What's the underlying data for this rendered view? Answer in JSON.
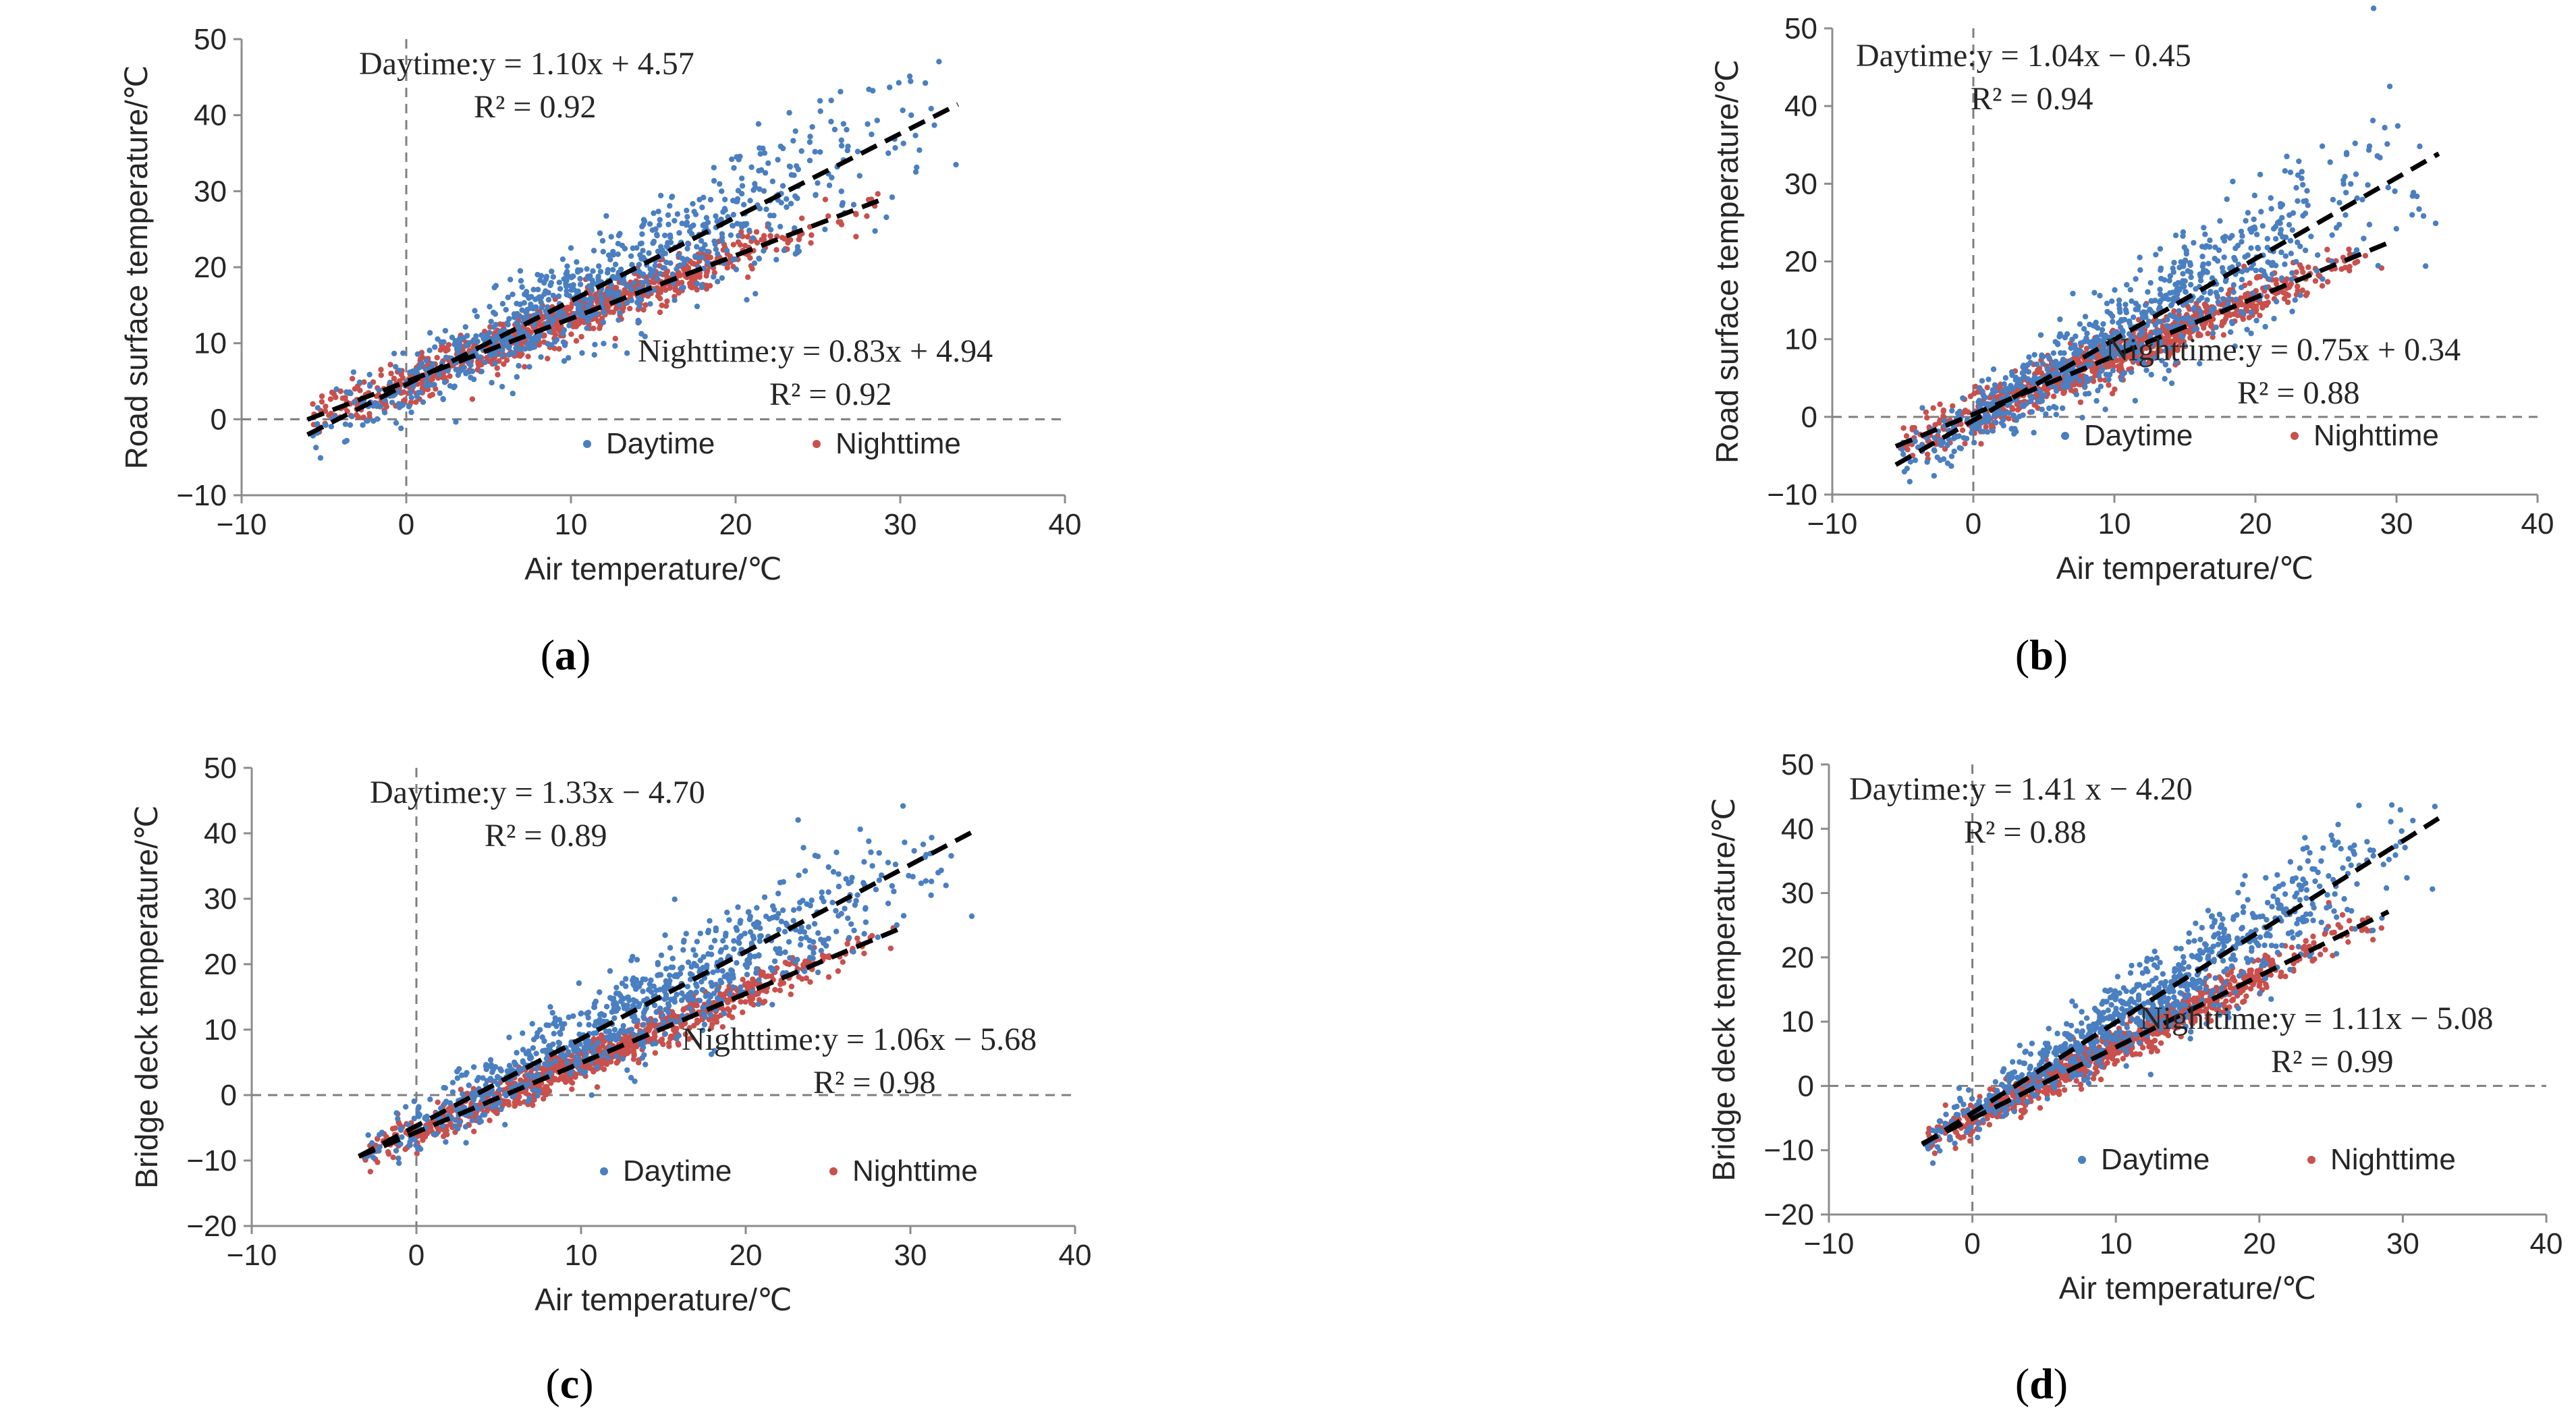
{
  "colors": {
    "day": "#4a7fc1",
    "night": "#c9504c",
    "fit": "#000000",
    "zero": "#7f7f7f",
    "axis": "#8c8c8c",
    "text": "#262626"
  },
  "legend": {
    "day": "Daytime",
    "night": "Nighttime"
  },
  "chart_data": [
    {
      "type": "scatter",
      "label_open": "(",
      "label_letter": "a",
      "label_close": ")",
      "xlabel": "Air temperature/℃",
      "ylabel": "Road surface temperature/℃",
      "xlim": [
        -10,
        40
      ],
      "ylim": [
        -10,
        50
      ],
      "xticks": [
        -10,
        0,
        10,
        20,
        30,
        40
      ],
      "yticks": [
        -10,
        0,
        10,
        20,
        30,
        40,
        50
      ],
      "series": [
        {
          "name": "Daytime",
          "slope": 1.1,
          "intercept": 4.57,
          "x_range": [
            -6,
            33.5
          ],
          "eq_line1": "Daytime:y = 1.10x + 4.57",
          "eq_line2": "R² = 0.92"
        },
        {
          "name": "Nighttime",
          "slope": 0.83,
          "intercept": 4.94,
          "x_range": [
            -6,
            29
          ],
          "eq_line1": "Nighttime:y = 0.83x + 4.94",
          "eq_line2": "R² = 0.92"
        }
      ]
    },
    {
      "type": "scatter",
      "label_open": "(",
      "label_letter": "b",
      "label_close": ")",
      "xlabel": "Air temperature/℃",
      "ylabel": "Road surface temperature/℃",
      "xlim": [
        -10,
        40
      ],
      "ylim": [
        -10,
        50
      ],
      "xticks": [
        -10,
        0,
        10,
        20,
        30,
        40
      ],
      "yticks": [
        -10,
        0,
        10,
        20,
        30,
        40,
        50
      ],
      "series": [
        {
          "name": "Daytime",
          "slope": 1.04,
          "intercept": -0.45,
          "x_range": [
            -5.5,
            33
          ],
          "eq_line1": "Daytime:y = 1.04x − 0.45",
          "eq_line2": "R² = 0.94"
        },
        {
          "name": "Nighttime",
          "slope": 0.75,
          "intercept": 0.34,
          "x_range": [
            -5.5,
            29.5
          ],
          "eq_line1": "Nighttime:y = 0.75x + 0.34",
          "eq_line2": "R² = 0.88"
        }
      ]
    },
    {
      "type": "scatter",
      "label_open": "(",
      "label_letter": "c",
      "label_close": ")",
      "xlabel": "Air temperature/℃",
      "ylabel": "Bridge deck temperature/℃",
      "xlim": [
        -10,
        40
      ],
      "ylim": [
        -20,
        50
      ],
      "xticks": [
        -10,
        0,
        10,
        20,
        30,
        40
      ],
      "yticks": [
        -20,
        -10,
        0,
        10,
        20,
        30,
        40,
        50
      ],
      "series": [
        {
          "name": "Daytime",
          "slope": 1.33,
          "intercept": -4.7,
          "x_range": [
            -3.5,
            34
          ],
          "eq_line1": "Daytime:y = 1.33x − 4.70",
          "eq_line2": "R² = 0.89"
        },
        {
          "name": "Nighttime",
          "slope": 1.06,
          "intercept": -5.68,
          "x_range": [
            -3.5,
            29.5
          ],
          "eq_line1": "Nighttime:y = 1.06x − 5.68",
          "eq_line2": "R² = 0.98"
        }
      ]
    },
    {
      "type": "scatter",
      "label_open": "(",
      "label_letter": "d",
      "label_close": ")",
      "xlabel": "Air temperature/℃",
      "ylabel": "Bridge deck temperature/℃",
      "xlim": [
        -10,
        40
      ],
      "ylim": [
        -20,
        50
      ],
      "xticks": [
        -10,
        0,
        10,
        20,
        30,
        40
      ],
      "yticks": [
        -20,
        -10,
        0,
        10,
        20,
        30,
        40,
        50
      ],
      "series": [
        {
          "name": "Daytime",
          "slope": 1.41,
          "intercept": -4.2,
          "x_range": [
            -3.5,
            32.5
          ],
          "eq_line1": "Daytime:y = 1.41 x − 4.20",
          "eq_line2": "R² = 0.88"
        },
        {
          "name": "Nighttime",
          "slope": 1.11,
          "intercept": -5.08,
          "x_range": [
            -3.5,
            29
          ],
          "eq_line1": "Nighttime:y = 1.11x − 5.08",
          "eq_line2": "R² = 0.99"
        }
      ]
    }
  ]
}
